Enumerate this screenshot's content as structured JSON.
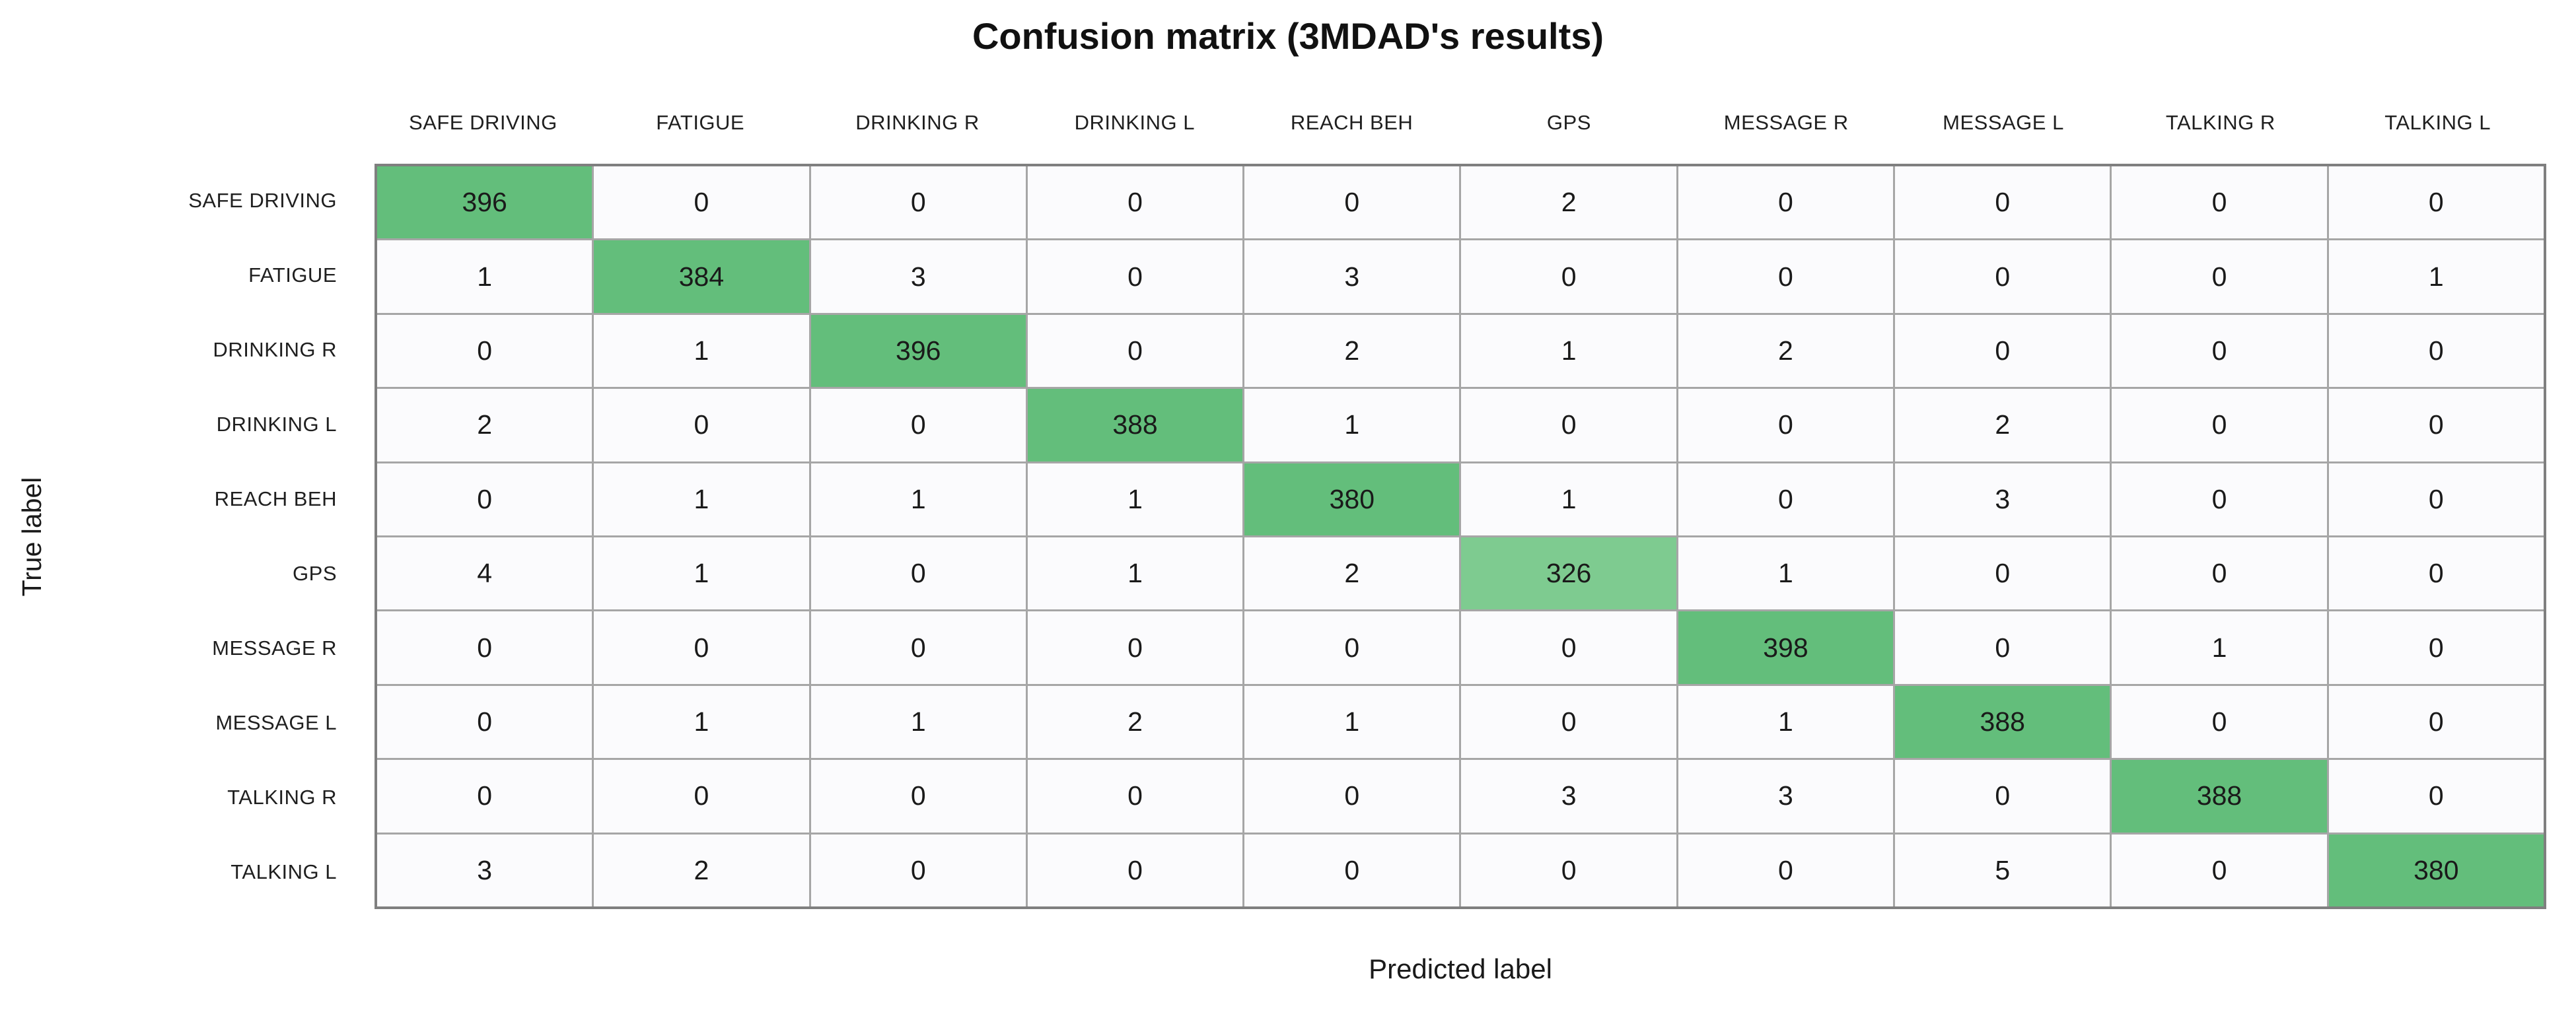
{
  "chart_data": {
    "type": "heatmap",
    "title": "Confusion matrix (3MDAD's results)",
    "xlabel": "Predicted label",
    "ylabel": "True label",
    "categories": [
      "SAFE DRIVING",
      "FATIGUE",
      "DRINKING R",
      "DRINKING L",
      "REACH BEH",
      "GPS",
      "MESSAGE R",
      "MESSAGE L",
      "TALKING R",
      "TALKING L"
    ],
    "matrix": [
      [
        396,
        0,
        0,
        0,
        0,
        2,
        0,
        0,
        0,
        0
      ],
      [
        1,
        384,
        3,
        0,
        3,
        0,
        0,
        0,
        0,
        1
      ],
      [
        0,
        1,
        396,
        0,
        2,
        1,
        2,
        0,
        0,
        0
      ],
      [
        2,
        0,
        0,
        388,
        1,
        0,
        0,
        2,
        0,
        0
      ],
      [
        0,
        1,
        1,
        1,
        380,
        1,
        0,
        3,
        0,
        0
      ],
      [
        4,
        1,
        0,
        1,
        2,
        326,
        1,
        0,
        0,
        0
      ],
      [
        0,
        0,
        0,
        0,
        0,
        0,
        398,
        0,
        1,
        0
      ],
      [
        0,
        1,
        1,
        2,
        1,
        0,
        1,
        388,
        0,
        0
      ],
      [
        0,
        0,
        0,
        0,
        0,
        3,
        3,
        0,
        388,
        0
      ],
      [
        3,
        2,
        0,
        0,
        0,
        0,
        0,
        5,
        0,
        380
      ]
    ],
    "colors": {
      "diagonal": "#63be7b",
      "diagonal_low": "#7ecb90",
      "low_threshold": 350,
      "off_diagonal": "#fbfbfd",
      "gridline": "#a6a6a6",
      "outer_border": "#7f7f7f"
    },
    "legend_position": "none",
    "grid": true
  }
}
